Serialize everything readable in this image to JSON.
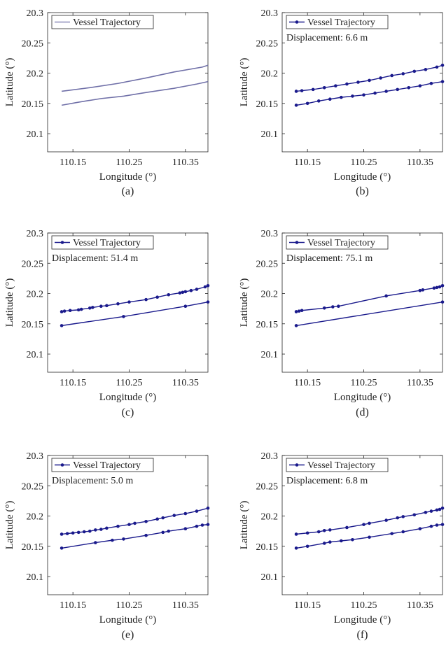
{
  "chart_data": [
    {
      "panel": "a",
      "type": "line",
      "caption": "(a)",
      "xlabel": "Longitude (°)",
      "ylabel": "Latitude (°)",
      "xticks": [
        "110.15",
        "110.25",
        "110.35"
      ],
      "yticks": [
        "20.1",
        "20.15",
        "20.2",
        "20.25",
        "20.3"
      ],
      "xlim": [
        110.105,
        110.39
      ],
      "ylim": [
        20.07,
        20.3
      ],
      "legend": "Vessel Trajectory",
      "legend_placement": "top-left",
      "displacement": "",
      "markers": false,
      "color": "#7070a8",
      "series": [
        {
          "x": [
            110.13,
            110.18,
            110.23,
            110.28,
            110.33,
            110.38,
            110.39
          ],
          "y": [
            20.17,
            20.176,
            20.183,
            20.192,
            20.202,
            20.21,
            20.213
          ]
        },
        {
          "x": [
            110.13,
            110.16,
            110.2,
            110.24,
            110.28,
            110.33,
            110.37,
            110.39
          ],
          "y": [
            20.147,
            20.152,
            20.158,
            20.162,
            20.168,
            20.175,
            20.182,
            20.186
          ]
        }
      ]
    },
    {
      "panel": "b",
      "type": "line",
      "caption": "(b)",
      "xlabel": "Longitude (°)",
      "ylabel": "Latitude (°)",
      "xticks": [
        "110.15",
        "110.25",
        "110.35"
      ],
      "yticks": [
        "20.1",
        "20.15",
        "20.2",
        "20.25",
        "20.3"
      ],
      "xlim": [
        110.105,
        110.39
      ],
      "ylim": [
        20.07,
        20.3
      ],
      "legend": "Vessel Trajectory",
      "legend_placement": "top-left",
      "displacement": "Displacement: 6.6 m",
      "markers": true,
      "color": "#1a1a8c",
      "series": [
        {
          "x": [
            110.13,
            110.14,
            110.16,
            110.18,
            110.2,
            110.22,
            110.24,
            110.26,
            110.28,
            110.3,
            110.32,
            110.34,
            110.36,
            110.38,
            110.39
          ],
          "y": [
            20.17,
            20.171,
            20.173,
            20.176,
            20.179,
            20.182,
            20.185,
            20.188,
            20.192,
            20.196,
            20.199,
            20.203,
            20.206,
            20.21,
            20.213
          ]
        },
        {
          "x": [
            110.13,
            110.15,
            110.17,
            110.19,
            110.21,
            110.23,
            110.25,
            110.27,
            110.29,
            110.31,
            110.33,
            110.35,
            110.37,
            110.39
          ],
          "y": [
            20.147,
            20.15,
            20.154,
            20.157,
            20.16,
            20.162,
            20.164,
            20.167,
            20.17,
            20.173,
            20.176,
            20.179,
            20.183,
            20.186
          ]
        }
      ]
    },
    {
      "panel": "c",
      "type": "line",
      "caption": "(c)",
      "xlabel": "Longitude (°)",
      "ylabel": "Latitude (°)",
      "xticks": [
        "110.15",
        "110.25",
        "110.35"
      ],
      "yticks": [
        "20.1",
        "20.15",
        "20.2",
        "20.25",
        "20.3"
      ],
      "xlim": [
        110.105,
        110.39
      ],
      "ylim": [
        20.07,
        20.3
      ],
      "legend": "Vessel Trajectory",
      "legend_placement": "top-left",
      "displacement": "Displacement: 51.4 m",
      "markers": true,
      "color": "#1a1a8c",
      "series": [
        {
          "x": [
            110.13,
            110.135,
            110.145,
            110.16,
            110.165,
            110.18,
            110.185,
            110.2,
            110.21,
            110.23,
            110.25,
            110.28,
            110.3,
            110.32,
            110.34,
            110.345,
            110.35,
            110.36,
            110.37,
            110.385,
            110.39
          ],
          "y": [
            20.17,
            20.171,
            20.172,
            20.173,
            20.174,
            20.176,
            20.177,
            20.179,
            20.18,
            20.183,
            20.186,
            20.19,
            20.194,
            20.198,
            20.201,
            20.202,
            20.203,
            20.205,
            20.207,
            20.211,
            20.213
          ]
        },
        {
          "x": [
            110.13,
            110.24,
            110.35,
            110.39
          ],
          "y": [
            20.147,
            20.162,
            20.179,
            20.186
          ]
        }
      ]
    },
    {
      "panel": "d",
      "type": "line",
      "caption": "(d)",
      "xlabel": "Longitude (°)",
      "ylabel": "Latitude (°)",
      "xticks": [
        "110.15",
        "110.25",
        "110.35"
      ],
      "yticks": [
        "20.1",
        "20.15",
        "20.2",
        "20.25",
        "20.3"
      ],
      "xlim": [
        110.105,
        110.39
      ],
      "ylim": [
        20.07,
        20.3
      ],
      "legend": "Vessel Trajectory",
      "legend_placement": "top-left",
      "displacement": "Displacement: 75.1 m",
      "markers": true,
      "color": "#1a1a8c",
      "series": [
        {
          "x": [
            110.13,
            110.135,
            110.14,
            110.18,
            110.195,
            110.205,
            110.29,
            110.35,
            110.355,
            110.375,
            110.38,
            110.385,
            110.39
          ],
          "y": [
            20.17,
            20.171,
            20.172,
            20.176,
            20.178,
            20.179,
            20.196,
            20.205,
            20.206,
            20.209,
            20.21,
            20.211,
            20.213
          ]
        },
        {
          "x": [
            110.13,
            110.39
          ],
          "y": [
            20.147,
            20.186
          ]
        }
      ]
    },
    {
      "panel": "e",
      "type": "line",
      "caption": "(e)",
      "xlabel": "Longitude (°)",
      "ylabel": "Latitude (°)",
      "xticks": [
        "110.15",
        "110.25",
        "110.35"
      ],
      "yticks": [
        "20.1",
        "20.15",
        "20.2",
        "20.25",
        "20.3"
      ],
      "xlim": [
        110.105,
        110.39
      ],
      "ylim": [
        20.07,
        20.3
      ],
      "legend": "Vessel Trajectory",
      "legend_placement": "top-left",
      "displacement": "Displacement: 5.0 m",
      "markers": true,
      "color": "#1a1a8c",
      "series": [
        {
          "x": [
            110.13,
            110.14,
            110.15,
            110.16,
            110.17,
            110.18,
            110.19,
            110.2,
            110.21,
            110.23,
            110.25,
            110.26,
            110.28,
            110.3,
            110.31,
            110.33,
            110.35,
            110.37,
            110.39
          ],
          "y": [
            20.17,
            20.171,
            20.172,
            20.173,
            20.174,
            20.175,
            20.177,
            20.178,
            20.18,
            20.183,
            20.186,
            20.188,
            20.191,
            20.195,
            20.197,
            20.201,
            20.204,
            20.208,
            20.213
          ]
        },
        {
          "x": [
            110.13,
            110.19,
            110.22,
            110.24,
            110.28,
            110.31,
            110.32,
            110.35,
            110.37,
            110.38,
            110.39
          ],
          "y": [
            20.147,
            20.156,
            20.16,
            20.162,
            20.168,
            20.173,
            20.175,
            20.179,
            20.183,
            20.185,
            20.186
          ]
        }
      ]
    },
    {
      "panel": "f",
      "type": "line",
      "caption": "(f)",
      "xlabel": "Longitude (°)",
      "ylabel": "Latitude (°)",
      "xticks": [
        "110.15",
        "110.25",
        "110.35"
      ],
      "yticks": [
        "20.1",
        "20.15",
        "20.2",
        "20.25",
        "20.3"
      ],
      "xlim": [
        110.105,
        110.39
      ],
      "ylim": [
        20.07,
        20.3
      ],
      "legend": "Vessel Trajectory",
      "legend_placement": "top-left",
      "displacement": "Displacement: 6.8 m",
      "markers": true,
      "color": "#1a1a8c",
      "series": [
        {
          "x": [
            110.13,
            110.15,
            110.17,
            110.18,
            110.19,
            110.22,
            110.25,
            110.26,
            110.29,
            110.31,
            110.32,
            110.34,
            110.36,
            110.37,
            110.38,
            110.385,
            110.39
          ],
          "y": [
            20.17,
            20.172,
            20.174,
            20.176,
            20.177,
            20.181,
            20.186,
            20.188,
            20.193,
            20.197,
            20.199,
            20.202,
            20.206,
            20.208,
            20.21,
            20.211,
            20.213
          ]
        },
        {
          "x": [
            110.13,
            110.15,
            110.18,
            110.19,
            110.21,
            110.23,
            110.26,
            110.3,
            110.32,
            110.35,
            110.37,
            110.38,
            110.39
          ],
          "y": [
            20.147,
            20.15,
            20.155,
            20.157,
            20.159,
            20.161,
            20.165,
            20.171,
            20.174,
            20.179,
            20.183,
            20.185,
            20.186
          ]
        }
      ]
    }
  ]
}
